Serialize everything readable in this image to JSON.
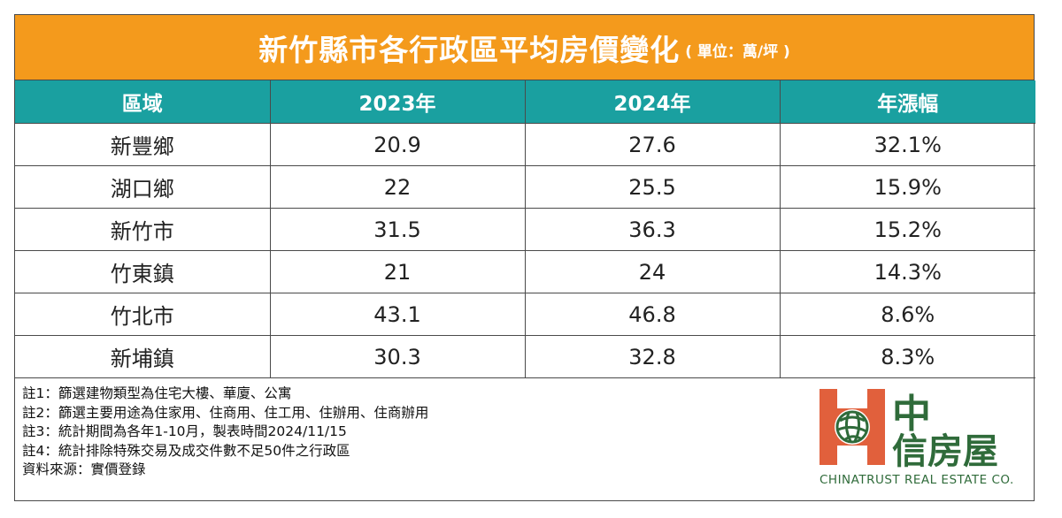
{
  "header": {
    "title": "新竹縣市各行政區平均房價變化",
    "unit": "( 單位：萬/坪 )"
  },
  "chart_data": {
    "type": "table",
    "columns": [
      "區域",
      "2023年",
      "2024年",
      "年漲幅"
    ],
    "rows": [
      [
        "新豐鄉",
        "20.9",
        "27.6",
        "32.1%"
      ],
      [
        "湖口鄉",
        "22",
        "25.5",
        "15.9%"
      ],
      [
        "新竹市",
        "31.5",
        "36.3",
        "15.2%"
      ],
      [
        "竹東鎮",
        "21",
        "24",
        "14.3%"
      ],
      [
        "竹北市",
        "43.1",
        "46.8",
        "8.6%"
      ],
      [
        "新埔鎮",
        "30.3",
        "32.8",
        "8.3%"
      ]
    ]
  },
  "notes": [
    "註1：篩選建物類型為住宅大樓、華廈、公寓",
    "註2：篩選主要用途為住家用、住商用、住工用、住辦用、住商辦用",
    "註3：統計期間為各年1-10月，製表時間2024/11/15",
    "註4：統計排除特殊交易及成交件數不足50件之行政區",
    "資料來源：實價登錄"
  ],
  "logo": {
    "zh_line1": "中",
    "zh_line2": "信房屋",
    "en": "CHINATRUST REAL ESTATE CO."
  },
  "colors": {
    "title_bg": "#f49a1c",
    "header_bg": "#1aa0a0",
    "logo_red": "#e1603c",
    "logo_green": "#2f6b3a"
  }
}
